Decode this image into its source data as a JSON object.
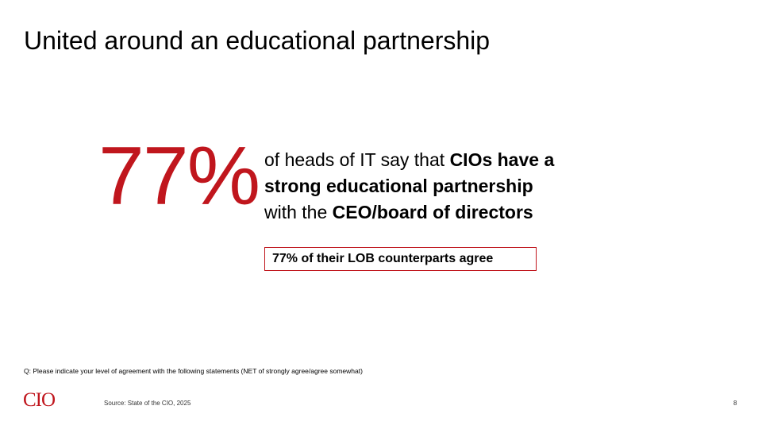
{
  "header": {
    "title": "United around an educational partnership"
  },
  "stat": {
    "figure": "77%",
    "statement": [
      [
        {
          "text": "of heads of IT say that ",
          "bold": false
        },
        {
          "text": "CIOs have a",
          "bold": true
        }
      ],
      [
        {
          "text": "strong educational partnership",
          "bold": true
        }
      ],
      [
        {
          "text": "with the ",
          "bold": false
        },
        {
          "text": "CEO/board of directors",
          "bold": true
        }
      ]
    ],
    "callout": "77% of their LOB counterparts agree"
  },
  "footer": {
    "question": "Q: Please indicate your level of agreement with the following statements (NET of strongly agree/agree somewhat)",
    "logo": "CIO",
    "source": "Source: State of the CIO, 2025",
    "page": "8"
  }
}
